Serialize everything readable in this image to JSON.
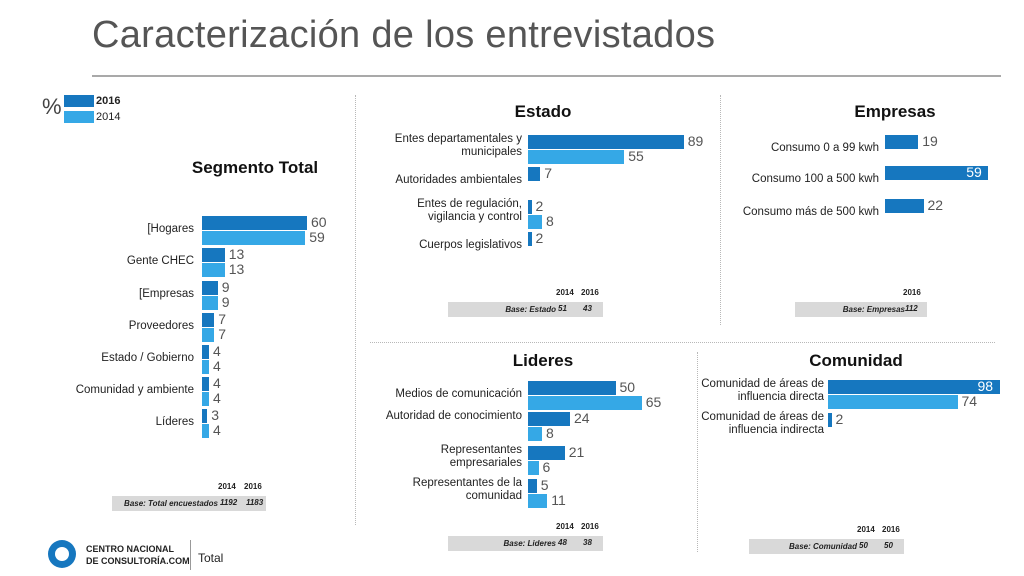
{
  "title": "Caracterización de los entrevistados",
  "legend": {
    "unit_symbol": "%",
    "items": [
      {
        "label": "2016",
        "color": "#1677bf"
      },
      {
        "label": "2014",
        "color": "#35a8e6"
      }
    ]
  },
  "colors": {
    "y2016": "#1677bf",
    "y2014": "#35a8e6"
  },
  "chart_data": [
    {
      "type": "bar",
      "title": "Segmento Total",
      "orientation": "horizontal",
      "categories": [
        "[Hogares",
        "Gente CHEC",
        "[Empresas",
        "Proveedores",
        "Estado / Gobierno",
        "Comunidad y ambiente",
        "Líderes"
      ],
      "series": [
        {
          "name": "2016",
          "values": [
            60,
            13,
            9,
            7,
            4,
            4,
            3
          ]
        },
        {
          "name": "2014",
          "values": [
            59,
            13,
            9,
            7,
            4,
            4,
            4
          ]
        }
      ],
      "base": {
        "label": "Base: Total encuestados",
        "years": [
          "2014",
          "2016"
        ],
        "values": [
          "1192",
          "1183"
        ]
      }
    },
    {
      "type": "bar",
      "title": "Estado",
      "orientation": "horizontal",
      "categories": [
        "Entes departamentales y municipales",
        "Autoridades ambientales",
        "Entes de regulación, vigilancia y control",
        "Cuerpos legislativos"
      ],
      "series": [
        {
          "name": "2016",
          "values": [
            89,
            7,
            2,
            2
          ]
        },
        {
          "name": "2014",
          "values": [
            55,
            null,
            8,
            null
          ]
        }
      ],
      "base": {
        "label": "Base: Estado",
        "years": [
          "2014",
          "2016"
        ],
        "values": [
          "51",
          "43"
        ]
      }
    },
    {
      "type": "bar",
      "title": "Empresas",
      "orientation": "horizontal",
      "categories": [
        "Consumo 0 a 99 kwh",
        "Consumo 100 a 500 kwh",
        "Consumo más de 500 kwh"
      ],
      "series": [
        {
          "name": "2016",
          "values": [
            19,
            59,
            22
          ]
        }
      ],
      "base": {
        "label": "Base: Empresas",
        "years": [
          "2016"
        ],
        "values": [
          "112"
        ]
      }
    },
    {
      "type": "bar",
      "title": "Lideres",
      "orientation": "horizontal",
      "categories": [
        "Medios de comunicación",
        "Autoridad de conocimiento",
        "Representantes empresariales",
        "Representantes de la comunidad"
      ],
      "series": [
        {
          "name": "2016",
          "values": [
            50,
            24,
            21,
            5
          ]
        },
        {
          "name": "2014",
          "values": [
            65,
            8,
            6,
            11
          ]
        }
      ],
      "base": {
        "label": "Base: Lideres",
        "years": [
          "2014",
          "2016"
        ],
        "values": [
          "48",
          "38"
        ]
      }
    },
    {
      "type": "bar",
      "title": "Comunidad",
      "orientation": "horizontal",
      "categories": [
        "Comunidad de áreas de influencia directa",
        "Comunidad de áreas de influencia indirecta"
      ],
      "series": [
        {
          "name": "2016",
          "values": [
            98,
            2
          ]
        },
        {
          "name": "2014",
          "values": [
            74,
            null
          ]
        }
      ],
      "base": {
        "label": "Base: Comunidad",
        "years": [
          "2014",
          "2016"
        ],
        "values": [
          "50",
          "50"
        ]
      }
    }
  ],
  "footer": {
    "org_line1": "CENTRO NACIONAL",
    "org_line2": "DE CONSULTORÍA.COM",
    "section": "Total"
  }
}
